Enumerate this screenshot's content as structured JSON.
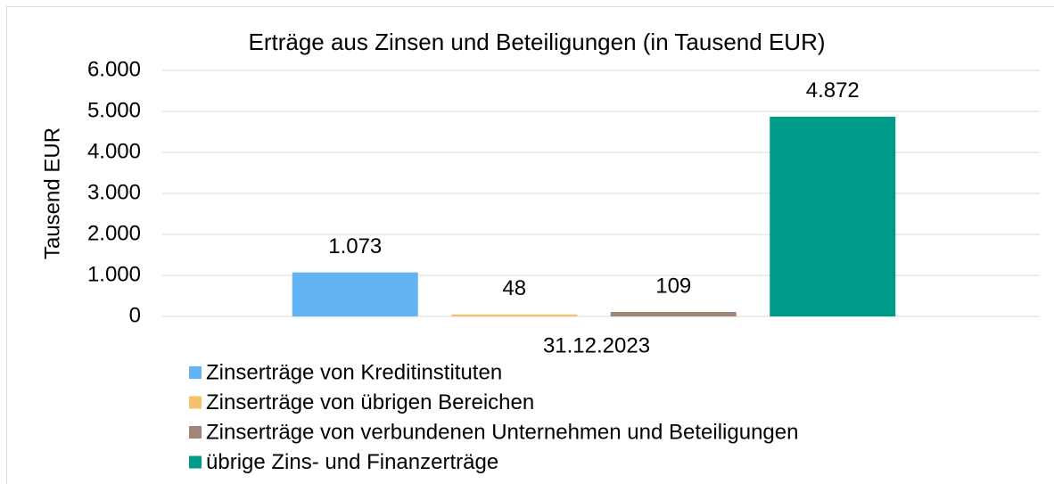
{
  "chart_data": {
    "type": "bar",
    "title": "Erträge aus Zinsen und Beteiligungen (in Tausend EUR)",
    "y_label": "Tausend EUR",
    "categories": [
      "31.12.2023"
    ],
    "series": [
      {
        "name": "Zinserträge von Kreditinstituten",
        "color": "#63b4f5",
        "values": [
          1073
        ],
        "value_labels": [
          "1.073"
        ]
      },
      {
        "name": "Zinserträge von übrigen Bereichen",
        "color": "#f5c26b",
        "values": [
          48
        ],
        "value_labels": [
          "48"
        ]
      },
      {
        "name": "Zinserträge von verbundenen Unternehmen und Beteiligungen",
        "color": "#a0857a",
        "values": [
          109
        ],
        "value_labels": [
          "109"
        ]
      },
      {
        "name": "übrige Zins- und Finanzerträge",
        "color": "#009a88",
        "values": [
          4872
        ],
        "value_labels": [
          "4.872"
        ]
      }
    ],
    "ylim": [
      0,
      6000
    ],
    "yticks": [
      0,
      {
        "value": 1000,
        "label": "1.000"
      },
      {
        "value": 2000,
        "label": "2.000"
      },
      {
        "value": 3000,
        "label": "3.000"
      },
      {
        "value": 4000,
        "label": "4.000"
      },
      {
        "value": 5000,
        "label": "5.000"
      },
      {
        "value": 6000,
        "label": "6.000"
      }
    ],
    "grid": true,
    "legend": "bottom-left"
  }
}
